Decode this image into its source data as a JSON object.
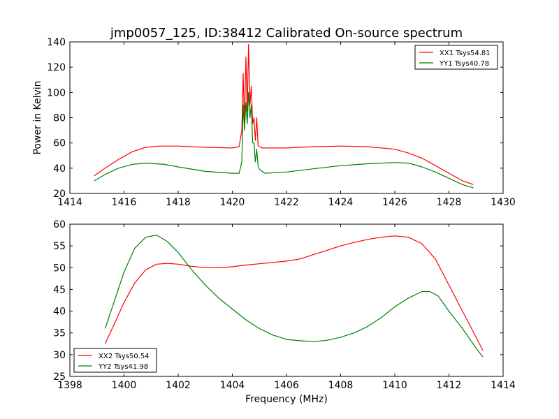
{
  "figure": {
    "title": "jmp0057_125, ID:38412 Calibrated On-source spectrum",
    "background": "#ffffff"
  },
  "chart_data": [
    {
      "type": "line",
      "title": "jmp0057_125, ID:38412 Calibrated On-source spectrum",
      "xlabel": "",
      "ylabel": "Power in Kelvin",
      "xlim": [
        1414,
        1430
      ],
      "ylim": [
        20,
        140
      ],
      "xticks": [
        "1414",
        "1416",
        "1418",
        "1420",
        "1422",
        "1424",
        "1426",
        "1428",
        "1430"
      ],
      "yticks": [
        "20",
        "40",
        "60",
        "80",
        "100",
        "120",
        "140"
      ],
      "grid": false,
      "legend_position": "top-right",
      "series": [
        {
          "name": "XX1 Tsys54.81",
          "color": "#ff0000",
          "x": [
            1414.9,
            1415.3,
            1415.8,
            1416.3,
            1416.8,
            1417.3,
            1418.0,
            1419.0,
            1420.0,
            1420.25,
            1420.35,
            1420.4,
            1420.45,
            1420.5,
            1420.55,
            1420.6,
            1420.65,
            1420.7,
            1420.75,
            1420.8,
            1420.85,
            1420.9,
            1420.95,
            1421.0,
            1421.1,
            1422.0,
            1423.0,
            1424.0,
            1425.0,
            1426.0,
            1426.5,
            1427.0,
            1427.5,
            1428.0,
            1428.5,
            1428.9
          ],
          "y": [
            34,
            40,
            47,
            53,
            56.5,
            57.5,
            57.5,
            56.5,
            56,
            57,
            70,
            115,
            75,
            128,
            85,
            138,
            90,
            105,
            75,
            80,
            62,
            80,
            58,
            57,
            56,
            56,
            57,
            57.5,
            57,
            55,
            52,
            48,
            42,
            36,
            30,
            27
          ]
        },
        {
          "name": "YY1 Tsys40.78",
          "color": "#008000",
          "x": [
            1414.9,
            1415.3,
            1415.8,
            1416.3,
            1416.8,
            1417.5,
            1418.0,
            1419.0,
            1420.0,
            1420.25,
            1420.35,
            1420.4,
            1420.45,
            1420.5,
            1420.55,
            1420.6,
            1420.65,
            1420.7,
            1420.75,
            1420.8,
            1420.85,
            1420.9,
            1420.95,
            1421.0,
            1421.2,
            1422.0,
            1423.0,
            1424.0,
            1425.0,
            1426.0,
            1426.5,
            1427.0,
            1427.5,
            1428.0,
            1428.5,
            1428.9
          ],
          "y": [
            30,
            35,
            40,
            43,
            44,
            43,
            41,
            37.5,
            36,
            36,
            45,
            90,
            70,
            92,
            75,
            100,
            80,
            90,
            60,
            60,
            45,
            55,
            42,
            39,
            36,
            37,
            39.5,
            42,
            43.5,
            44.5,
            44,
            41,
            37,
            32,
            27,
            24.5
          ]
        }
      ]
    },
    {
      "type": "line",
      "title": "",
      "xlabel": "Frequency (MHz)",
      "ylabel": "",
      "xlim": [
        1398,
        1414
      ],
      "ylim": [
        25,
        60
      ],
      "xticks": [
        "1398",
        "1400",
        "1402",
        "1404",
        "1406",
        "1408",
        "1410",
        "1412",
        "1414"
      ],
      "yticks": [
        "25",
        "30",
        "35",
        "40",
        "45",
        "50",
        "55",
        "60"
      ],
      "grid": false,
      "legend_position": "bottom-left",
      "series": [
        {
          "name": "XX2 Tsys50.54",
          "color": "#ff0000",
          "x": [
            1399.3,
            1399.6,
            1400.0,
            1400.4,
            1400.8,
            1401.2,
            1401.6,
            1402.0,
            1402.5,
            1403.0,
            1403.5,
            1404.0,
            1404.5,
            1405.0,
            1405.5,
            1406.0,
            1406.5,
            1407.0,
            1407.5,
            1408.0,
            1408.5,
            1409.0,
            1409.5,
            1410.0,
            1410.5,
            1411.0,
            1411.5,
            1412.0,
            1412.5,
            1413.0,
            1413.25
          ],
          "y": [
            32.5,
            36.5,
            42,
            46.5,
            49.5,
            50.8,
            51,
            50.8,
            50.3,
            50,
            50,
            50.2,
            50.6,
            50.9,
            51.2,
            51.5,
            52,
            53,
            54,
            55,
            55.8,
            56.5,
            57,
            57.3,
            57,
            55.5,
            52,
            46,
            40,
            34,
            31
          ]
        },
        {
          "name": "YY2 Tsys41.98",
          "color": "#008000",
          "x": [
            1399.3,
            1399.6,
            1400.0,
            1400.4,
            1400.8,
            1401.2,
            1401.6,
            1402.0,
            1402.5,
            1403.0,
            1403.5,
            1404.0,
            1404.5,
            1405.0,
            1405.5,
            1406.0,
            1406.5,
            1407.0,
            1407.5,
            1408.0,
            1408.5,
            1409.0,
            1409.5,
            1410.0,
            1410.5,
            1411.0,
            1411.3,
            1411.6,
            1412.0,
            1412.5,
            1413.0,
            1413.25
          ],
          "y": [
            36,
            41.5,
            49,
            54.5,
            57,
            57.5,
            56,
            53.5,
            49.5,
            46,
            43,
            40.5,
            38,
            36,
            34.5,
            33.5,
            33.2,
            33,
            33.3,
            34,
            35,
            36.5,
            38.5,
            41,
            43,
            44.5,
            44.5,
            43.5,
            40,
            36,
            31.5,
            29.5
          ]
        }
      ]
    }
  ]
}
